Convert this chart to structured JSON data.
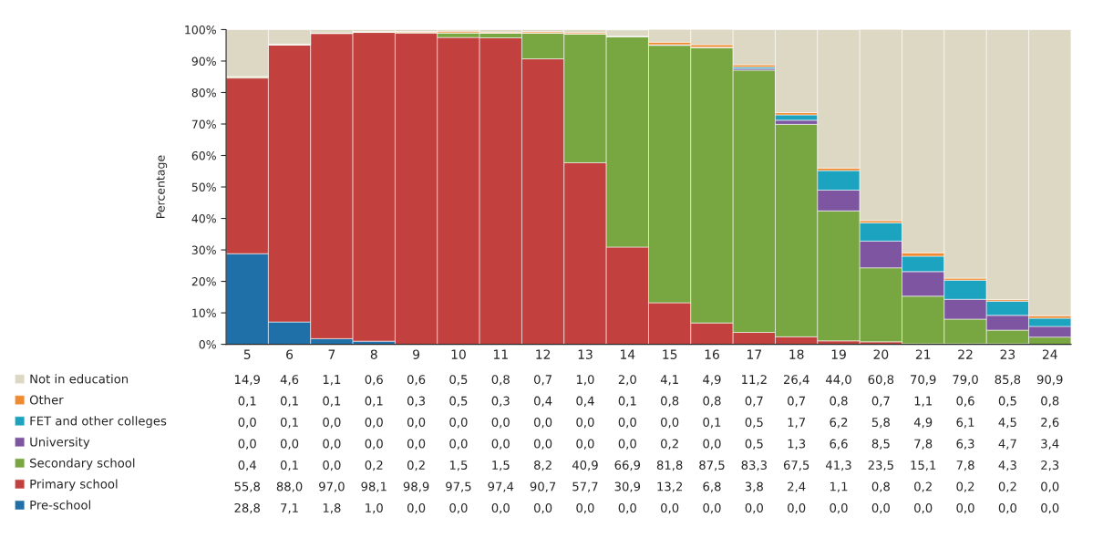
{
  "chart_data": {
    "type": "bar",
    "stacked": true,
    "ylabel": "Percentage",
    "categories": [
      "5",
      "6",
      "7",
      "8",
      "9",
      "10",
      "11",
      "12",
      "13",
      "14",
      "15",
      "16",
      "17",
      "18",
      "19",
      "20",
      "21",
      "22",
      "23",
      "24"
    ],
    "ylim": [
      0,
      100
    ],
    "yticks": [
      {
        "value": 0,
        "label": "0%"
      },
      {
        "value": 10,
        "label": "10%"
      },
      {
        "value": 20,
        "label": "20%"
      },
      {
        "value": 30,
        "label": "30%"
      },
      {
        "value": 40,
        "label": "40%"
      },
      {
        "value": 50,
        "label": "50%"
      },
      {
        "value": 60,
        "label": "60%"
      },
      {
        "value": 70,
        "label": "70%"
      },
      {
        "value": 80,
        "label": "80%"
      },
      {
        "value": 90,
        "label": "90%"
      },
      {
        "value": 100,
        "label": "100%"
      }
    ],
    "grid": false,
    "legend": "bottom left",
    "series": [
      {
        "name": "Pre-school",
        "color": "#1f6fa8",
        "values": [
          28.8,
          7.1,
          1.8,
          1.0,
          0.0,
          0.0,
          0.0,
          0.0,
          0.0,
          0.0,
          0.0,
          0.0,
          0.0,
          0.0,
          0.0,
          0.0,
          0.0,
          0.0,
          0.0,
          0.0
        ],
        "value_labels": [
          "28,8",
          "7,1",
          "1,8",
          "1,0",
          "0,0",
          "0,0",
          "0,0",
          "0,0",
          "0,0",
          "0,0",
          "0,0",
          "0,0",
          "0,0",
          "0,0",
          "0,0",
          "0,0",
          "0,0",
          "0,0",
          "0,0",
          "0,0"
        ]
      },
      {
        "name": "Primary school",
        "color": "#c2403d",
        "values": [
          55.8,
          88.0,
          97.0,
          98.1,
          98.9,
          97.5,
          97.4,
          90.7,
          57.7,
          30.9,
          13.2,
          6.8,
          3.8,
          2.4,
          1.1,
          0.8,
          0.2,
          0.2,
          0.2,
          0.0
        ],
        "value_labels": [
          "55,8",
          "88,0",
          "97,0",
          "98,1",
          "98,9",
          "97,5",
          "97,4",
          "90,7",
          "57,7",
          "30,9",
          "13,2",
          "6,8",
          "3,8",
          "2,4",
          "1,1",
          "0,8",
          "0,2",
          "0,2",
          "0,2",
          "0,0"
        ]
      },
      {
        "name": "Secondary school",
        "color": "#78a640",
        "values": [
          0.4,
          0.1,
          0.0,
          0.2,
          0.2,
          1.5,
          1.5,
          8.2,
          40.9,
          66.9,
          81.8,
          87.5,
          83.3,
          67.5,
          41.3,
          23.5,
          15.1,
          7.8,
          4.3,
          2.3
        ],
        "value_labels": [
          "0,4",
          "0,1",
          "0,0",
          "0,2",
          "0,2",
          "1,5",
          "1,5",
          "8,2",
          "40,9",
          "66,9",
          "81,8",
          "87,5",
          "83,3",
          "67,5",
          "41,3",
          "23,5",
          "15,1",
          "7,8",
          "4,3",
          "2,3"
        ]
      },
      {
        "name": "University",
        "color": "#7d55a0",
        "values": [
          0.0,
          0.0,
          0.0,
          0.0,
          0.0,
          0.0,
          0.0,
          0.0,
          0.0,
          0.0,
          0.2,
          0.0,
          0.5,
          1.3,
          6.6,
          8.5,
          7.8,
          6.3,
          4.7,
          3.4
        ],
        "value_labels": [
          "0,0",
          "0,0",
          "0,0",
          "0,0",
          "0,0",
          "0,0",
          "0,0",
          "0,0",
          "0,0",
          "0,0",
          "0,2",
          "0,0",
          "0,5",
          "1,3",
          "6,6",
          "8,5",
          "7,8",
          "6,3",
          "4,7",
          "3,4"
        ]
      },
      {
        "name": "FET and other colleges",
        "color": "#1ba3c0",
        "values": [
          0.0,
          0.1,
          0.0,
          0.0,
          0.0,
          0.0,
          0.0,
          0.0,
          0.0,
          0.0,
          0.0,
          0.1,
          0.5,
          1.7,
          6.2,
          5.8,
          4.9,
          6.1,
          4.5,
          2.6
        ],
        "value_labels": [
          "0,0",
          "0,1",
          "0,0",
          "0,0",
          "0,0",
          "0,0",
          "0,0",
          "0,0",
          "0,0",
          "0,0",
          "0,0",
          "0,1",
          "0,5",
          "1,7",
          "6,2",
          "5,8",
          "4,9",
          "6,1",
          "4,5",
          "2,6"
        ]
      },
      {
        "name": "Other",
        "color": "#f08a30",
        "values": [
          0.1,
          0.1,
          0.1,
          0.1,
          0.3,
          0.5,
          0.3,
          0.4,
          0.4,
          0.1,
          0.8,
          0.8,
          0.7,
          0.7,
          0.8,
          0.7,
          1.1,
          0.6,
          0.5,
          0.8
        ],
        "value_labels": [
          "0,1",
          "0,1",
          "0,1",
          "0,1",
          "0,3",
          "0,5",
          "0,3",
          "0,4",
          "0,4",
          "0,1",
          "0,8",
          "0,8",
          "0,7",
          "0,7",
          "0,8",
          "0,7",
          "1,1",
          "0,6",
          "0,5",
          "0,8"
        ]
      },
      {
        "name": "Not in education",
        "color": "#ddd8c4",
        "values": [
          14.9,
          4.6,
          1.1,
          0.6,
          0.6,
          0.5,
          0.8,
          0.7,
          1.0,
          2.0,
          4.1,
          4.9,
          11.2,
          26.4,
          44.0,
          60.8,
          70.9,
          79.0,
          85.8,
          90.9
        ],
        "value_labels": [
          "14,9",
          "4,6",
          "1,1",
          "0,6",
          "0,6",
          "0,5",
          "0,8",
          "0,7",
          "1,0",
          "2,0",
          "4,1",
          "4,9",
          "11,2",
          "26,4",
          "44,0",
          "60,8",
          "70,9",
          "79,0",
          "85,8",
          "90,9"
        ]
      }
    ]
  }
}
